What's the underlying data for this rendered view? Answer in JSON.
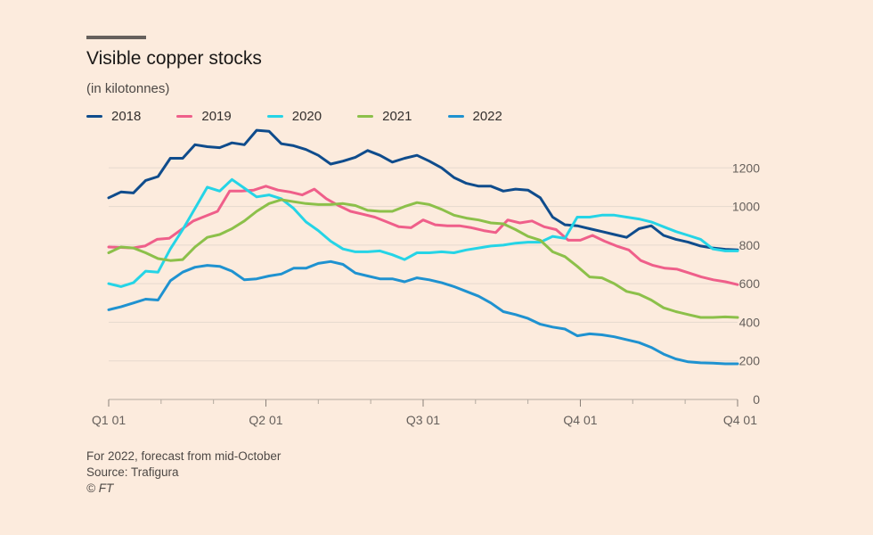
{
  "chart_data": {
    "type": "line",
    "title": "Visible copper stocks",
    "subtitle": "(in kilotonnes)",
    "xlabel": "",
    "ylabel": "",
    "x_ticks": [
      "Q1 01",
      "Q2 01",
      "Q3 01",
      "Q4 01",
      "Q4 01"
    ],
    "x_tick_positions": [
      0,
      13,
      26,
      39,
      52
    ],
    "y_ticks": [
      0,
      200,
      400,
      600,
      800,
      1000,
      1200
    ],
    "ylim": [
      0,
      1400
    ],
    "xlim": [
      0,
      52
    ],
    "legend_position": "top-left",
    "grid": "horizontal",
    "series": [
      {
        "name": "2018",
        "color": "#0f4c8c",
        "values": [
          1045,
          1075,
          1070,
          1135,
          1155,
          1250,
          1250,
          1320,
          1310,
          1305,
          1330,
          1320,
          1395,
          1390,
          1325,
          1315,
          1295,
          1265,
          1220,
          1235,
          1255,
          1290,
          1265,
          1230,
          1250,
          1265,
          1235,
          1200,
          1150,
          1120,
          1105,
          1105,
          1080,
          1090,
          1085,
          1045,
          945,
          905,
          900,
          885,
          870,
          855,
          840,
          885,
          900,
          850,
          830,
          815,
          795,
          785,
          778,
          775
        ]
      },
      {
        "name": "2019",
        "color": "#ef5f8a",
        "values": [
          790,
          788,
          785,
          795,
          830,
          835,
          880,
          925,
          950,
          975,
          1080,
          1080,
          1085,
          1105,
          1085,
          1075,
          1060,
          1090,
          1040,
          1005,
          975,
          960,
          945,
          920,
          895,
          890,
          930,
          905,
          900,
          900,
          890,
          875,
          865,
          930,
          915,
          925,
          895,
          880,
          825,
          825,
          850,
          820,
          795,
          775,
          720,
          695,
          680,
          675,
          655,
          635,
          620,
          610,
          595
        ]
      },
      {
        "name": "2020",
        "color": "#25d4e6",
        "values": [
          600,
          585,
          605,
          665,
          660,
          780,
          880,
          990,
          1100,
          1080,
          1140,
          1095,
          1050,
          1060,
          1040,
          990,
          920,
          875,
          820,
          780,
          765,
          765,
          770,
          750,
          725,
          760,
          760,
          765,
          760,
          775,
          785,
          795,
          800,
          810,
          815,
          815,
          845,
          835,
          945,
          945,
          955,
          955,
          945,
          935,
          920,
          895,
          870,
          850,
          830,
          780,
          770,
          770
        ]
      },
      {
        "name": "2021",
        "color": "#8cc04a",
        "values": [
          760,
          790,
          785,
          760,
          730,
          720,
          725,
          790,
          840,
          855,
          885,
          925,
          975,
          1015,
          1035,
          1025,
          1015,
          1010,
          1010,
          1015,
          1005,
          980,
          975,
          975,
          1000,
          1020,
          1010,
          985,
          955,
          940,
          930,
          915,
          910,
          880,
          845,
          825,
          765,
          740,
          690,
          635,
          630,
          600,
          560,
          545,
          515,
          475,
          455,
          440,
          425,
          425,
          428,
          425
        ]
      },
      {
        "name": "2022",
        "color": "#1f92d0",
        "values": [
          465,
          480,
          500,
          520,
          515,
          615,
          660,
          685,
          695,
          690,
          665,
          620,
          625,
          640,
          650,
          680,
          680,
          705,
          715,
          700,
          655,
          640,
          625,
          625,
          610,
          630,
          620,
          605,
          585,
          560,
          535,
          500,
          455,
          440,
          420,
          390,
          375,
          365,
          330,
          340,
          335,
          325,
          310,
          295,
          270,
          235,
          210,
          195,
          190,
          188,
          185,
          185
        ]
      }
    ]
  },
  "footer": {
    "note": "For 2022, forecast from mid-October",
    "source": "Source: Trafigura",
    "copyright": "© FT"
  }
}
